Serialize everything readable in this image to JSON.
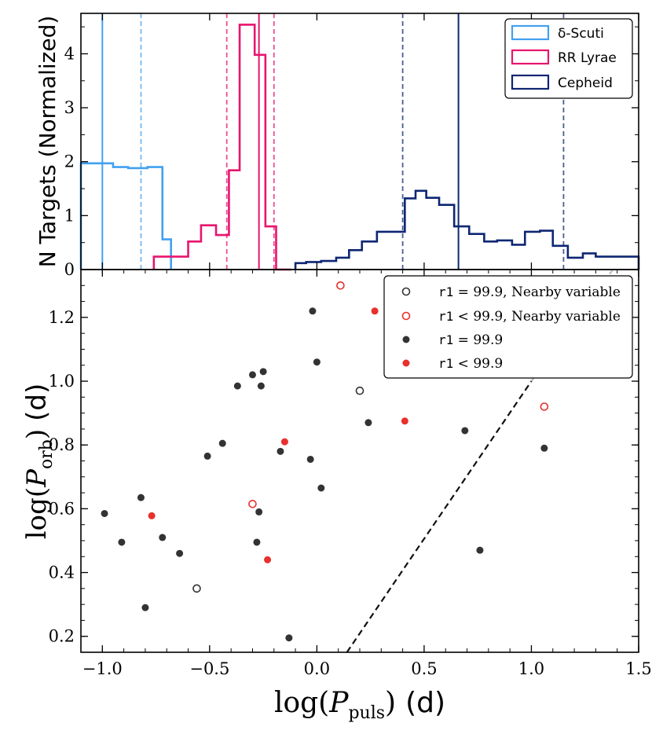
{
  "chart_data": [
    {
      "type": "histogram",
      "ylabel": "N Targets (Normalized)",
      "xlim": [
        -1.1,
        1.5
      ],
      "ylim": [
        0,
        4.75
      ],
      "yticks": [
        0,
        1,
        2,
        3,
        4
      ],
      "series": [
        {
          "name": "δ-Scuti",
          "color": "#42a0f0",
          "edges": [
            -1.1,
            -0.95,
            -0.88,
            -0.79,
            -0.72,
            -0.68
          ],
          "heights": [
            1.97,
            1.9,
            1.88,
            1.9,
            0.56
          ],
          "median": -1.0,
          "percentiles": [
            -0.82
          ]
        },
        {
          "name": "RR Lyrae",
          "color": "#e8146e",
          "edges": [
            -0.76,
            -0.67,
            -0.6,
            -0.54,
            -0.47,
            -0.41,
            -0.36,
            -0.29,
            -0.24,
            -0.19,
            -0.12
          ],
          "heights": [
            0.24,
            0.24,
            0.52,
            0.82,
            0.64,
            1.84,
            4.54,
            3.98,
            0.8,
            0.0
          ],
          "median": -0.27,
          "percentiles": [
            -0.42,
            -0.2
          ]
        },
        {
          "name": "Cepheid",
          "color": "#0d2673",
          "edges": [
            -0.1,
            -0.05,
            0.02,
            0.09,
            0.15,
            0.21,
            0.28,
            0.33,
            0.41,
            0.46,
            0.51,
            0.57,
            0.64,
            0.71,
            0.78,
            0.84,
            0.91,
            0.97,
            1.04,
            1.1,
            1.17,
            1.24,
            1.3,
            1.37,
            1.43,
            1.5
          ],
          "heights": [
            0.12,
            0.14,
            0.16,
            0.22,
            0.36,
            0.52,
            0.7,
            0.7,
            1.32,
            1.46,
            1.33,
            1.2,
            0.8,
            0.66,
            0.52,
            0.54,
            0.46,
            0.7,
            0.72,
            0.44,
            0.22,
            0.3,
            0.24,
            0.24,
            0.24
          ],
          "median": 0.66,
          "percentiles": [
            0.4,
            1.15
          ]
        }
      ],
      "legend": {
        "position": "top-right"
      }
    },
    {
      "type": "scatter",
      "xlabel": "log(P_puls) (d)",
      "ylabel": "log(P_orb) (d)",
      "xlim": [
        -1.1,
        1.5
      ],
      "ylim": [
        0.15,
        1.35
      ],
      "xticks": [
        -1.0,
        -0.5,
        0.0,
        0.5,
        1.0,
        1.5
      ],
      "yticks": [
        0.2,
        0.4,
        0.6,
        0.8,
        1.0,
        1.2
      ],
      "series": [
        {
          "name": "r1 = 99.9, Nearby variable",
          "marker": "open",
          "color": "#333333",
          "points": [
            [
              0.2,
              0.97
            ],
            [
              -0.56,
              0.35
            ]
          ]
        },
        {
          "name": "r1 < 99.9, Nearby variable",
          "marker": "open",
          "color": "#e8302c",
          "points": [
            [
              0.11,
              1.3
            ],
            [
              1.06,
              0.92
            ],
            [
              -0.3,
              0.615
            ]
          ]
        },
        {
          "name": "r1 = 99.9",
          "marker": "filled",
          "color": "#333333",
          "points": [
            [
              -0.02,
              1.22
            ],
            [
              0.0,
              1.06
            ],
            [
              -0.25,
              1.03
            ],
            [
              -0.3,
              1.02
            ],
            [
              -0.37,
              0.985
            ],
            [
              -0.26,
              0.985
            ],
            [
              0.24,
              0.87
            ],
            [
              0.69,
              0.845
            ],
            [
              -0.44,
              0.805
            ],
            [
              -0.51,
              0.765
            ],
            [
              -0.17,
              0.78
            ],
            [
              1.06,
              0.79
            ],
            [
              -0.03,
              0.755
            ],
            [
              0.02,
              0.665
            ],
            [
              -0.82,
              0.635
            ],
            [
              -0.27,
              0.59
            ],
            [
              -0.99,
              0.585
            ],
            [
              -0.72,
              0.51
            ],
            [
              -0.91,
              0.495
            ],
            [
              -0.28,
              0.495
            ],
            [
              0.76,
              0.47
            ],
            [
              -0.64,
              0.46
            ],
            [
              -0.8,
              0.29
            ],
            [
              -0.13,
              0.195
            ]
          ]
        },
        {
          "name": "r1 < 99.9",
          "marker": "filled",
          "color": "#e8302c",
          "points": [
            [
              0.27,
              1.22
            ],
            [
              0.41,
              0.875
            ],
            [
              -0.15,
              0.81
            ],
            [
              -0.77,
              0.578
            ],
            [
              -0.23,
              0.44
            ]
          ]
        }
      ],
      "reference_line": {
        "style": "dashed",
        "color": "#111111",
        "from": [
          0.14,
          0.15
        ],
        "to": [
          1.0,
          1.0
        ],
        "extended_to": [
          1.38,
          1.35
        ]
      },
      "legend": {
        "position": "top-right"
      }
    }
  ],
  "labels": {
    "top_ylabel": "N Targets (Normalized)",
    "bottom_ylabel_main": "log(",
    "bottom_ylabel_P": "P",
    "bottom_ylabel_sub": "orb",
    "bottom_ylabel_close": ")",
    "bottom_ylabel_unit": "(d)",
    "xlabel_main": "log(",
    "xlabel_P": "P",
    "xlabel_sub": "puls",
    "xlabel_close": ")",
    "xlabel_unit": "(d)",
    "top_yticks": [
      "0",
      "1",
      "2",
      "3",
      "4"
    ],
    "bottom_yticks": [
      "0.2",
      "0.4",
      "0.6",
      "0.8",
      "1.0",
      "1.2"
    ],
    "xticks": [
      "−1.0",
      "−0.5",
      "0.0",
      "0.5",
      "1.0",
      "1.5"
    ],
    "legend_top": [
      "δ-Scuti",
      "RR Lyrae",
      "Cepheid"
    ],
    "legend_bottom": [
      {
        "mono": "r1",
        "rest": " = 99.9, Nearby variable"
      },
      {
        "mono": "r1",
        "rest": " < 99.9, Nearby variable"
      },
      {
        "mono": "r1",
        "rest": " = 99.9"
      },
      {
        "mono": "r1",
        "rest": " < 99.9"
      }
    ]
  }
}
